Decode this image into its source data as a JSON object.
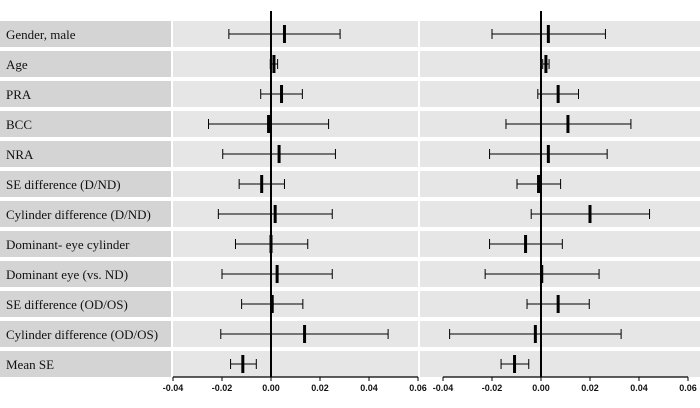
{
  "chart_data": {
    "type": "forest",
    "rows": [
      "Gender, male",
      "Age",
      "PRA",
      "BCC",
      "NRA",
      "SE difference (D/ND)",
      "Cylinder difference (D/ND)",
      "Dominant- eye cylinder",
      "Dominant eye (vs. ND)",
      "SE difference (OD/OS)",
      "Cylinder difference (OD/OS)",
      "Mean SE"
    ],
    "xlim": [
      -0.04,
      0.06
    ],
    "ticks": [
      "-0.04",
      "-0.02",
      "0.00",
      "0.02",
      "0.04",
      "0.06"
    ],
    "tick_values": [
      -0.04,
      -0.02,
      0.0,
      0.02,
      0.04,
      0.06
    ],
    "reference_line": 0,
    "panels": [
      {
        "points": [
          {
            "est": 0.0055,
            "low": -0.0172,
            "high": 0.0282
          },
          {
            "est": 0.0012,
            "low": -0.0003,
            "high": 0.0027
          },
          {
            "est": 0.0043,
            "low": -0.0042,
            "high": 0.0128
          },
          {
            "est": -0.001,
            "low": -0.0255,
            "high": 0.0235
          },
          {
            "est": 0.0033,
            "low": -0.0197,
            "high": 0.0263
          },
          {
            "est": -0.0038,
            "low": -0.013,
            "high": 0.0055
          },
          {
            "est": 0.0017,
            "low": -0.0215,
            "high": 0.025
          },
          {
            "est": 0.0,
            "low": -0.0145,
            "high": 0.015
          },
          {
            "est": 0.0025,
            "low": -0.02,
            "high": 0.025
          },
          {
            "est": 0.0005,
            "low": -0.012,
            "high": 0.013
          },
          {
            "est": 0.0137,
            "low": -0.0205,
            "high": 0.0478
          },
          {
            "est": -0.0115,
            "low": -0.0165,
            "high": -0.006
          }
        ]
      },
      {
        "points": [
          {
            "est": 0.003,
            "low": -0.02,
            "high": 0.0263
          },
          {
            "est": 0.002,
            "low": 0.0007,
            "high": 0.0033
          },
          {
            "est": 0.007,
            "low": -0.0013,
            "high": 0.0153
          },
          {
            "est": 0.011,
            "low": -0.0143,
            "high": 0.0367
          },
          {
            "est": 0.003,
            "low": -0.021,
            "high": 0.027
          },
          {
            "est": -0.001,
            "low": -0.0098,
            "high": 0.008
          },
          {
            "est": 0.02,
            "low": -0.004,
            "high": 0.0443
          },
          {
            "est": -0.0063,
            "low": -0.021,
            "high": 0.0087
          },
          {
            "est": 0.0003,
            "low": -0.0228,
            "high": 0.0237
          },
          {
            "est": 0.007,
            "low": -0.0057,
            "high": 0.0197
          },
          {
            "est": -0.0023,
            "low": -0.0373,
            "high": 0.0327
          },
          {
            "est": -0.0108,
            "low": -0.0163,
            "high": -0.005
          }
        ]
      }
    ],
    "colors": {
      "label_band": "#d4d4d4",
      "plot_band": "#e6e6e6",
      "line": "#000000",
      "background": "#ffffff"
    }
  }
}
